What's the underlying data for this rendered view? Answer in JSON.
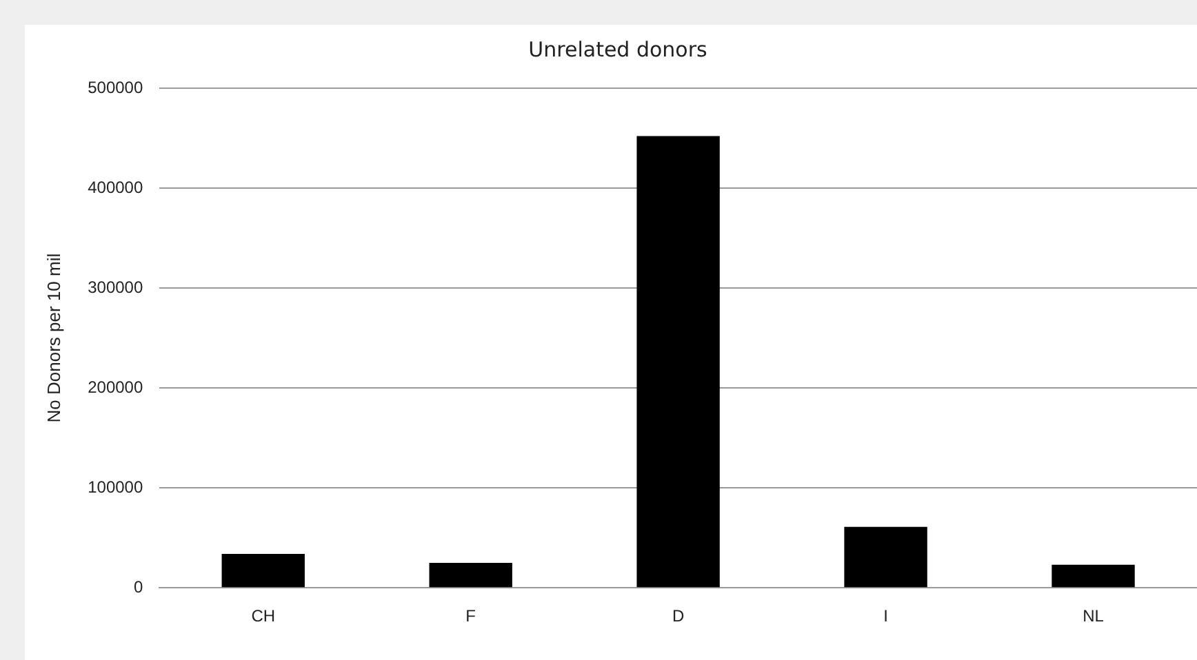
{
  "chart_data": {
    "type": "bar",
    "title": "Unrelated donors",
    "ylabel": "No Donors per 10 mil",
    "categories": [
      "CH",
      "F",
      "D",
      "I",
      "NL"
    ],
    "values": [
      34000,
      25000,
      452000,
      61000,
      23000
    ],
    "color": "#000000",
    "ylim": [
      0,
      500000
    ],
    "yticks": [
      0,
      100000,
      200000,
      300000,
      400000,
      500000
    ],
    "grid": "y"
  }
}
